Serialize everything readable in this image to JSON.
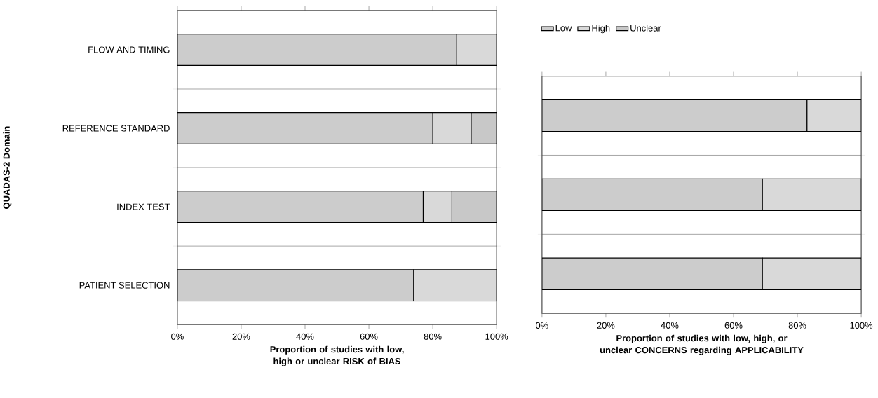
{
  "chart_data": [
    {
      "type": "bar",
      "orientation": "horizontal",
      "stacked": true,
      "ylabel": "QUADAS-2 Domain",
      "xlabel": "Proportion of studies with low, high or unclear RISK of BIAS",
      "categories": [
        "FLOW AND TIMING",
        "REFERENCE STANDARD",
        "INDEX TEST",
        "PATIENT SELECTION"
      ],
      "series": [
        {
          "color": "#cccccc",
          "values": [
            87.5,
            80,
            77,
            74
          ]
        },
        {
          "color": "#d9d9d9",
          "values": [
            12.5,
            12,
            9,
            26
          ]
        },
        {
          "color": "#c8c8c8",
          "values": [
            0,
            8,
            14,
            0
          ]
        }
      ],
      "xlim": [
        0,
        100
      ],
      "xticks": [
        {
          "value": 0,
          "label": "0%"
        },
        {
          "value": 20,
          "label": "20%"
        },
        {
          "value": 40,
          "label": "40%"
        },
        {
          "value": 60,
          "label": "60%"
        },
        {
          "value": 80,
          "label": "80%"
        },
        {
          "value": 100,
          "label": "100%"
        }
      ],
      "grid": "y"
    },
    {
      "type": "bar",
      "orientation": "horizontal",
      "stacked": true,
      "xlabel": "Proportion of studies with low, high, or unclear CONCERNS regarding APPLICABILITY",
      "categories": [
        null,
        null,
        null
      ],
      "series": [
        {
          "name": "Low",
          "color": "#cccccc",
          "values": [
            83,
            69,
            69
          ]
        },
        {
          "name": "High",
          "color": "#d9d9d9",
          "values": [
            17,
            31,
            31
          ]
        },
        {
          "name": "Unclear",
          "color": "#c8c8c8",
          "values": [
            0,
            0,
            0
          ]
        }
      ],
      "xlim": [
        0,
        100
      ],
      "xticks": [
        {
          "value": 0,
          "label": "0%"
        },
        {
          "value": 20,
          "label": "20%"
        },
        {
          "value": 40,
          "label": "40%"
        },
        {
          "value": 60,
          "label": "60%"
        },
        {
          "value": 80,
          "label": "80%"
        },
        {
          "value": 100,
          "label": "100%"
        }
      ],
      "grid": "y",
      "legend": "top left"
    }
  ]
}
